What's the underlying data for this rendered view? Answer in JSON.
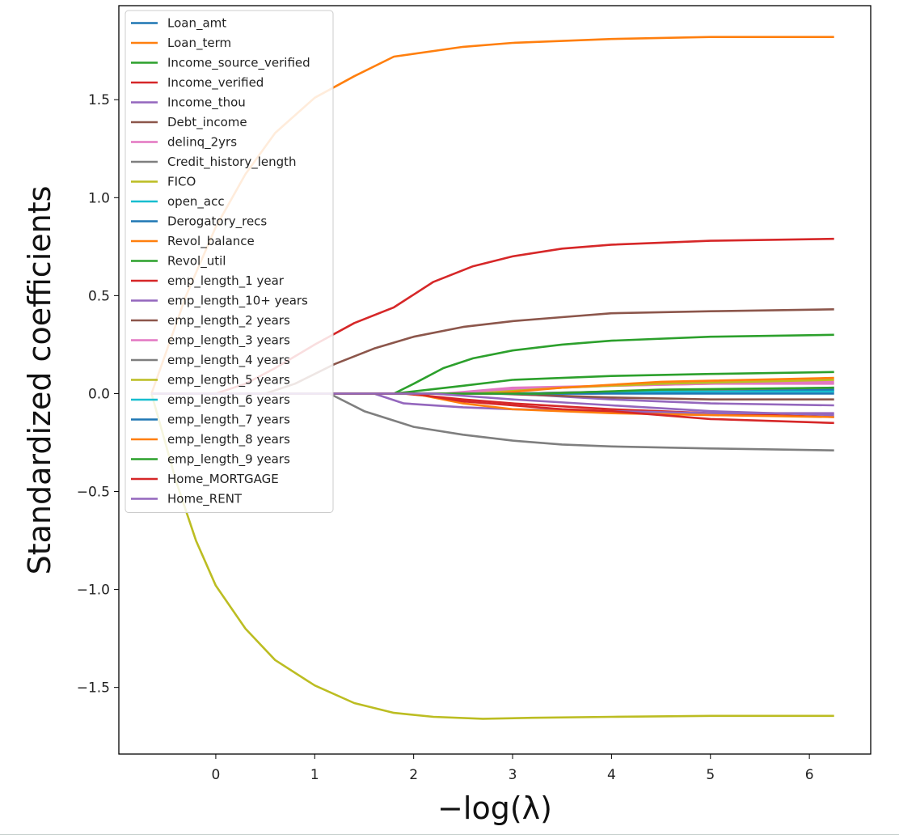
{
  "chart_data": {
    "type": "line",
    "title": "",
    "xlabel": "−log(λ)",
    "ylabel": "Standardized coefficients",
    "xlim": [
      -0.98,
      6.62
    ],
    "ylim": [
      -1.84,
      1.98
    ],
    "xticks": [
      0,
      1,
      2,
      3,
      4,
      5,
      6
    ],
    "xtick_labels": [
      "0",
      "1",
      "2",
      "3",
      "4",
      "5",
      "6"
    ],
    "yticks": [
      -1.5,
      -1.0,
      -0.5,
      0.0,
      0.5,
      1.0,
      1.5
    ],
    "ytick_labels": [
      "−1.5",
      "−1.0",
      "−0.5",
      "0.0",
      "0.5",
      "1.0",
      "1.5"
    ],
    "grid": false,
    "legend_position": "top-left",
    "series": [
      {
        "name": "Loan_amt",
        "color": "#1f77b4",
        "x": [
          -0.65,
          2.0,
          3.0,
          4.0,
          5.0,
          6.25
        ],
        "y": [
          0,
          0,
          0.0,
          0.01,
          0.01,
          0.01
        ]
      },
      {
        "name": "Loan_term",
        "color": "#ff7f0e",
        "x": [
          -0.65,
          -0.3,
          0.0,
          0.3,
          0.6,
          1.0,
          1.4,
          1.8,
          2.5,
          3.0,
          4.0,
          5.0,
          6.25
        ],
        "y": [
          0,
          0.5,
          0.85,
          1.12,
          1.33,
          1.51,
          1.62,
          1.72,
          1.77,
          1.79,
          1.81,
          1.82,
          1.82
        ]
      },
      {
        "name": "Income_source_verified",
        "color": "#2ca02c",
        "x": [
          -0.65,
          1.8,
          2.5,
          3.0,
          4.0,
          5.0,
          6.25
        ],
        "y": [
          0,
          0,
          0.04,
          0.07,
          0.09,
          0.1,
          0.11
        ]
      },
      {
        "name": "Income_verified",
        "color": "#d62728",
        "x": [
          -0.65,
          1.9,
          2.5,
          3.0,
          4.0,
          5.0,
          6.25
        ],
        "y": [
          0,
          0,
          -0.03,
          -0.05,
          -0.08,
          -0.1,
          -0.12
        ]
      },
      {
        "name": "Income_thou",
        "color": "#9467bd",
        "x": [
          -0.65,
          1.6,
          1.9,
          2.5,
          3.0,
          4.0,
          5.0,
          6.25
        ],
        "y": [
          0,
          0,
          -0.05,
          -0.07,
          -0.08,
          -0.09,
          -0.1,
          -0.1
        ]
      },
      {
        "name": "Debt_income",
        "color": "#8c564b",
        "x": [
          -0.65,
          0.5,
          0.8,
          1.2,
          1.6,
          2.0,
          2.5,
          3.0,
          3.5,
          4.0,
          5.0,
          6.25
        ],
        "y": [
          0,
          0,
          0.05,
          0.15,
          0.23,
          0.29,
          0.34,
          0.37,
          0.39,
          0.41,
          0.42,
          0.43
        ]
      },
      {
        "name": "delinq_2yrs",
        "color": "#e377c2",
        "x": [
          -0.65,
          2.4,
          3.0,
          4.0,
          5.0,
          6.25
        ],
        "y": [
          0,
          0,
          0.02,
          0.04,
          0.05,
          0.06
        ]
      },
      {
        "name": "Credit_history_length",
        "color": "#7f7f7f",
        "x": [
          -0.65,
          1.15,
          1.5,
          2.0,
          2.5,
          3.0,
          3.5,
          4.0,
          5.0,
          6.25
        ],
        "y": [
          0,
          0,
          -0.09,
          -0.17,
          -0.21,
          -0.24,
          -0.26,
          -0.27,
          -0.28,
          -0.29
        ]
      },
      {
        "name": "FICO",
        "color": "#bcbd22",
        "x": [
          -0.65,
          -0.4,
          -0.2,
          0.0,
          0.3,
          0.6,
          1.0,
          1.4,
          1.8,
          2.2,
          2.7,
          3.2,
          4.0,
          5.0,
          6.25
        ],
        "y": [
          0,
          -0.45,
          -0.75,
          -0.98,
          -1.2,
          -1.36,
          -1.49,
          -1.58,
          -1.63,
          -1.65,
          -1.66,
          -1.655,
          -1.65,
          -1.645,
          -1.645
        ]
      },
      {
        "name": "open_acc",
        "color": "#17becf",
        "x": [
          -0.65,
          3.5,
          4.5,
          6.25
        ],
        "y": [
          0,
          0,
          0.01,
          0.02
        ]
      },
      {
        "name": "Derogatory_recs",
        "color": "#1f77b4",
        "x": [
          -0.65,
          3.8,
          5.0,
          6.25
        ],
        "y": [
          0,
          0,
          0.01,
          0.02
        ]
      },
      {
        "name": "Revol_balance",
        "color": "#ff7f0e",
        "x": [
          -0.65,
          2.0,
          2.5,
          3.0,
          4.0,
          5.0,
          6.25
        ],
        "y": [
          0,
          0,
          -0.05,
          -0.08,
          -0.1,
          -0.11,
          -0.12
        ]
      },
      {
        "name": "Revol_util",
        "color": "#2ca02c",
        "x": [
          -0.65,
          1.8,
          2.0,
          2.3,
          2.6,
          3.0,
          3.5,
          4.0,
          5.0,
          6.25
        ],
        "y": [
          0,
          0,
          0.05,
          0.13,
          0.18,
          0.22,
          0.25,
          0.27,
          0.29,
          0.3
        ]
      },
      {
        "name": "emp_length_1 year",
        "color": "#d62728",
        "x": [
          -0.65,
          0.0,
          0.3,
          0.6,
          1.0,
          1.4,
          1.8,
          2.2,
          2.6,
          3.0,
          3.5,
          4.0,
          5.0,
          6.25
        ],
        "y": [
          0,
          0,
          0.05,
          0.13,
          0.25,
          0.36,
          0.44,
          0.57,
          0.65,
          0.7,
          0.74,
          0.76,
          0.78,
          0.79
        ]
      },
      {
        "name": "emp_length_10+ years",
        "color": "#9467bd",
        "x": [
          -0.65,
          3.0,
          4.0,
          5.0,
          6.25
        ],
        "y": [
          0,
          0,
          -0.03,
          -0.05,
          -0.06
        ]
      },
      {
        "name": "emp_length_2 years",
        "color": "#8c564b",
        "x": [
          -0.65,
          2.8,
          4.0,
          5.0,
          6.25
        ],
        "y": [
          0,
          0,
          -0.02,
          -0.03,
          -0.03
        ]
      },
      {
        "name": "emp_length_3 years",
        "color": "#e377c2",
        "x": [
          -0.65,
          2.3,
          3.0,
          4.0,
          5.0,
          6.25
        ],
        "y": [
          0,
          0,
          0.03,
          0.04,
          0.05,
          0.05
        ]
      },
      {
        "name": "emp_length_4 years",
        "color": "#7f7f7f",
        "x": [
          -0.65,
          3.0,
          4.0,
          5.0,
          6.25
        ],
        "y": [
          0,
          0,
          0.01,
          0.02,
          0.03
        ]
      },
      {
        "name": "emp_length_5 years",
        "color": "#bcbd22",
        "x": [
          -0.65,
          2.6,
          3.5,
          4.5,
          6.25
        ],
        "y": [
          0,
          0,
          0.03,
          0.05,
          0.07
        ]
      },
      {
        "name": "emp_length_6 years",
        "color": "#17becf",
        "x": [
          -0.65,
          3.2,
          4.5,
          6.25
        ],
        "y": [
          0,
          0,
          0.01,
          0.01
        ]
      },
      {
        "name": "emp_length_7 years",
        "color": "#1f77b4",
        "x": [
          -0.65,
          3.5,
          4.5,
          6.25
        ],
        "y": [
          0,
          0,
          0.0,
          0.0
        ]
      },
      {
        "name": "emp_length_8 years",
        "color": "#ff7f0e",
        "x": [
          -0.65,
          2.8,
          3.5,
          4.5,
          6.25
        ],
        "y": [
          0,
          0,
          0.03,
          0.06,
          0.08
        ]
      },
      {
        "name": "emp_length_9 years",
        "color": "#2ca02c",
        "x": [
          -0.65,
          3.3,
          4.5,
          6.25
        ],
        "y": [
          0,
          0,
          0.02,
          0.03
        ]
      },
      {
        "name": "Home_MORTGAGE",
        "color": "#d62728",
        "x": [
          -0.65,
          2.0,
          2.5,
          3.0,
          3.5,
          4.0,
          4.5,
          5.0,
          6.25
        ],
        "y": [
          0,
          0,
          -0.04,
          -0.06,
          -0.08,
          -0.09,
          -0.11,
          -0.13,
          -0.15
        ]
      },
      {
        "name": "Home_RENT",
        "color": "#9467bd",
        "x": [
          -0.65,
          2.2,
          3.0,
          4.0,
          5.0,
          6.25
        ],
        "y": [
          0,
          0,
          -0.03,
          -0.06,
          -0.09,
          -0.11
        ]
      }
    ]
  }
}
